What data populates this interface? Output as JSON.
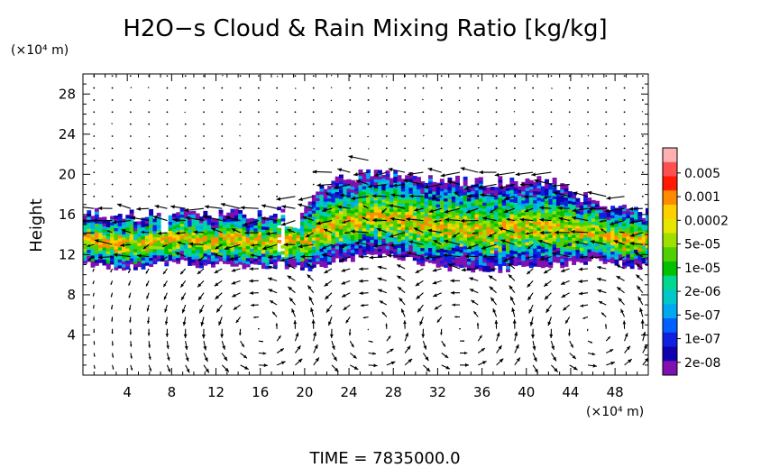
{
  "chart_data": {
    "type": "heatmap",
    "title": "H2O−s Cloud & Rain Mixing Ratio [kg/kg]",
    "xlabel": "",
    "ylabel": "Height",
    "x_unit_label": "(×10⁴ m)",
    "y_unit_label": "(×10⁴ m)",
    "xlim": [
      0,
      51
    ],
    "ylim": [
      0,
      30
    ],
    "x_ticks": [
      4,
      8,
      12,
      16,
      20,
      24,
      28,
      32,
      36,
      40,
      44,
      48
    ],
    "x_tick_labels": [
      "4",
      "8",
      "12",
      "16",
      "20",
      "24",
      "28",
      "32",
      "36",
      "40",
      "44",
      "48"
    ],
    "y_ticks": [
      4,
      8,
      12,
      16,
      20,
      24,
      28
    ],
    "y_tick_labels": [
      "4",
      "8",
      "12",
      "16",
      "20",
      "24",
      "28"
    ],
    "colorbar": {
      "labels": [
        "0.005",
        "0.001",
        "0.0002",
        "5e-05",
        "1e-05",
        "2e-06",
        "5e-07",
        "1e-07",
        "2e-08"
      ],
      "colors": [
        "#ffb0b0",
        "#ff5050",
        "#ff1a00",
        "#ff8c00",
        "#ffd000",
        "#e6e600",
        "#a0e000",
        "#50d000",
        "#00c000",
        "#00d890",
        "#00c8c8",
        "#00a8f0",
        "#0060ff",
        "#1020e0",
        "#1000b0",
        "#8010b0"
      ]
    },
    "cloud_layer": {
      "base_height": [
        11.0,
        10.8,
        11.2,
        11.0,
        10.9,
        10.6,
        11.2,
        12.0,
        11.4,
        10.4,
        10.6,
        11.0,
        11.4,
        10.8
      ],
      "top_height": [
        16.0,
        15.6,
        16.2,
        15.8,
        16.0,
        16.4,
        19.0,
        20.0,
        19.6,
        19.2,
        19.0,
        19.2,
        17.0,
        16.0
      ],
      "x_stations": [
        0,
        4,
        8,
        12,
        16,
        20,
        22,
        26,
        30,
        34,
        38,
        42,
        46,
        51
      ]
    },
    "wind_vectors": "cloud-layer outflow with overturning circulation cells at x ≈ 16, 26, 34, 46",
    "time_label": "TIME  =  7835000.0"
  }
}
